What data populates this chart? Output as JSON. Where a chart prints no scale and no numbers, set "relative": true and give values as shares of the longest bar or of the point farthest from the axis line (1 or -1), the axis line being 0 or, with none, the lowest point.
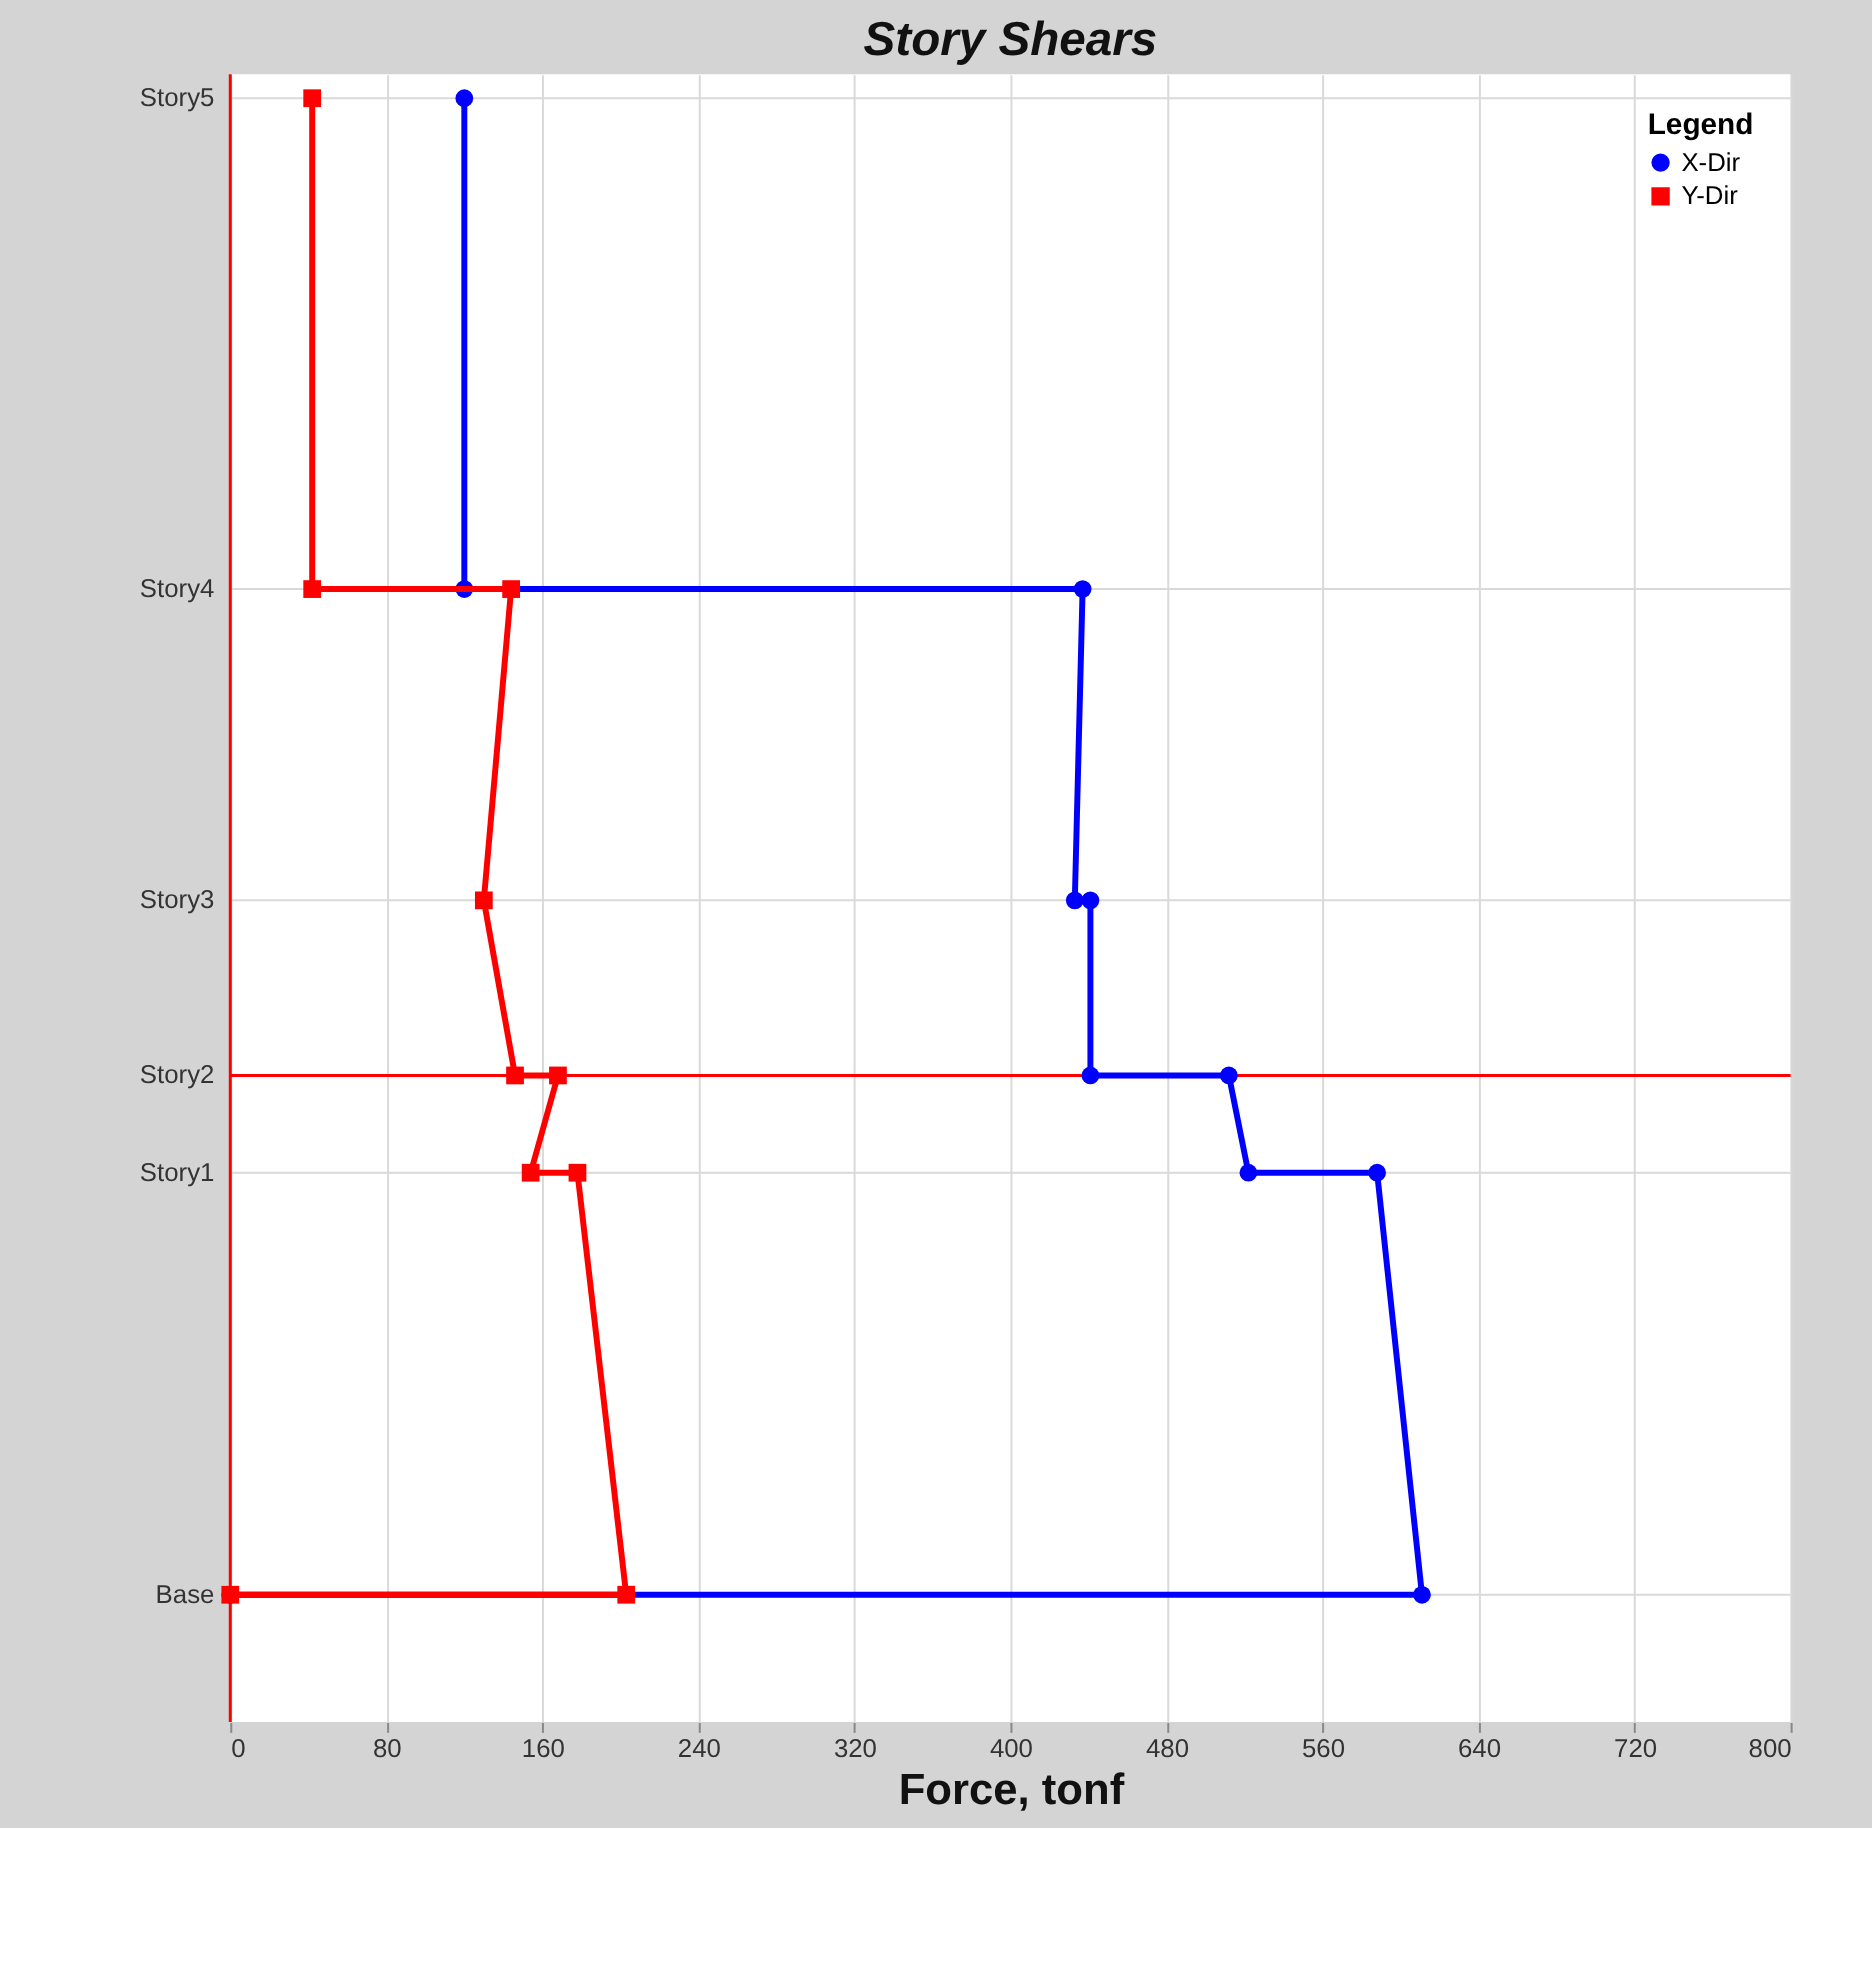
{
  "chart_data": {
    "type": "line",
    "relative": true,
    "title": "Story Shears",
    "xlabel": "Force, tonf",
    "legend_title": "Legend",
    "legend": "top right",
    "grid": true,
    "xlim": [
      0,
      800
    ],
    "xticks": [
      0,
      80,
      160,
      240,
      320,
      400,
      480,
      560,
      640,
      720,
      800
    ],
    "annotations": [
      "Base",
      "Story1",
      "Story2",
      "Story3",
      "Story4",
      "Story5"
    ],
    "series": [
      {
        "name": "X-Dir",
        "color": "#0000ff",
        "marker": "circle",
        "x": [
          120,
          120,
          437,
          433,
          441,
          441,
          512,
          522,
          588,
          611,
          0
        ],
        "values": [
          1,
          0.672,
          0.672,
          0.464,
          0.464,
          0.347,
          0.347,
          0.282,
          0.282,
          0,
          0
        ]
      },
      {
        "name": "Y-Dir",
        "color": "#ff0000",
        "marker": "square",
        "x": [
          42,
          42,
          144,
          130,
          146,
          168,
          154,
          178,
          203,
          0
        ],
        "values": [
          1,
          0.672,
          0.672,
          0.464,
          0.347,
          0.347,
          0.282,
          0.282,
          0,
          0
        ]
      }
    ],
    "ref_lines": [
      {
        "axis": "y",
        "value": 0.347,
        "color": "#ff0000"
      },
      {
        "axis": "x",
        "value": 0,
        "color": "#ff0000"
      }
    ]
  }
}
